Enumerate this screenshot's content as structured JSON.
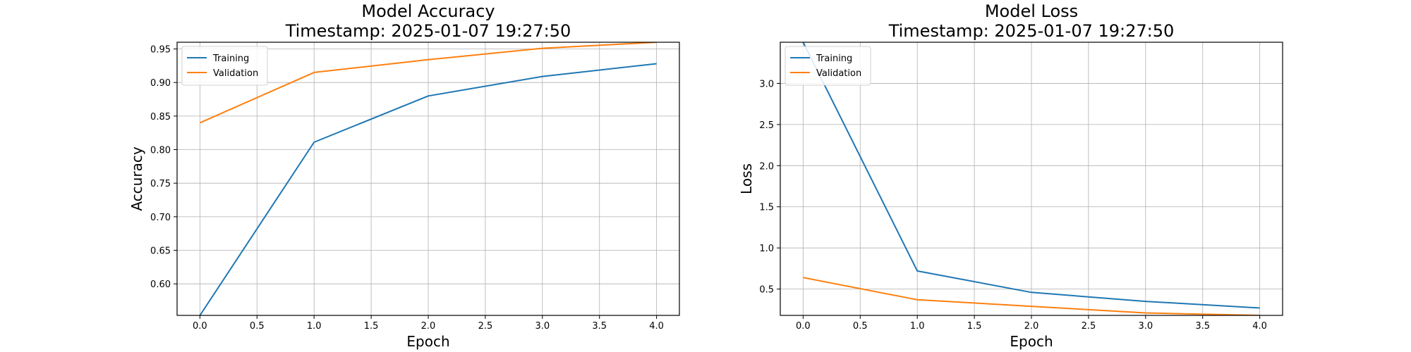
{
  "chart_data": [
    {
      "type": "line",
      "title": "Model Accuracy",
      "subtitle": "Timestamp: 2025-01-07 19:27:50",
      "xlabel": "Epoch",
      "ylabel": "Accuracy",
      "x": [
        0,
        1,
        2,
        3,
        4
      ],
      "xlim": [
        -0.2,
        4.2
      ],
      "ylim": [
        0.553,
        0.96
      ],
      "xticks": [
        0.0,
        0.5,
        1.0,
        1.5,
        2.0,
        2.5,
        3.0,
        3.5,
        4.0
      ],
      "xtick_labels": [
        "0.0",
        "0.5",
        "1.0",
        "1.5",
        "2.0",
        "2.5",
        "3.0",
        "3.5",
        "4.0"
      ],
      "yticks": [
        0.6,
        0.65,
        0.7,
        0.75,
        0.8,
        0.85,
        0.9,
        0.95
      ],
      "ytick_labels": [
        "0.60",
        "0.65",
        "0.70",
        "0.75",
        "0.80",
        "0.85",
        "0.90",
        "0.95"
      ],
      "grid": true,
      "legend": "upper-left",
      "series": [
        {
          "name": "Training",
          "color": "#1f77b4",
          "values": [
            0.553,
            0.811,
            0.88,
            0.909,
            0.928
          ]
        },
        {
          "name": "Validation",
          "color": "#ff7f0e",
          "values": [
            0.84,
            0.915,
            0.934,
            0.951,
            0.96
          ]
        }
      ]
    },
    {
      "type": "line",
      "title": "Model Loss",
      "subtitle": "Timestamp: 2025-01-07 19:27:50",
      "xlabel": "Epoch",
      "ylabel": "Loss",
      "x": [
        0,
        1,
        2,
        3,
        4
      ],
      "xlim": [
        -0.2,
        4.2
      ],
      "ylim": [
        0.18,
        3.5
      ],
      "xticks": [
        0.0,
        0.5,
        1.0,
        1.5,
        2.0,
        2.5,
        3.0,
        3.5,
        4.0
      ],
      "xtick_labels": [
        "0.0",
        "0.5",
        "1.0",
        "1.5",
        "2.0",
        "2.5",
        "3.0",
        "3.5",
        "4.0"
      ],
      "yticks": [
        0.5,
        1.0,
        1.5,
        2.0,
        2.5,
        3.0
      ],
      "ytick_labels": [
        "0.5",
        "1.0",
        "1.5",
        "2.0",
        "2.5",
        "3.0"
      ],
      "grid": true,
      "legend": "upper-left",
      "series": [
        {
          "name": "Training",
          "color": "#1f77b4",
          "values": [
            3.5,
            0.72,
            0.46,
            0.35,
            0.27
          ]
        },
        {
          "name": "Validation",
          "color": "#ff7f0e",
          "values": [
            0.64,
            0.37,
            0.29,
            0.21,
            0.18
          ]
        }
      ]
    }
  ]
}
